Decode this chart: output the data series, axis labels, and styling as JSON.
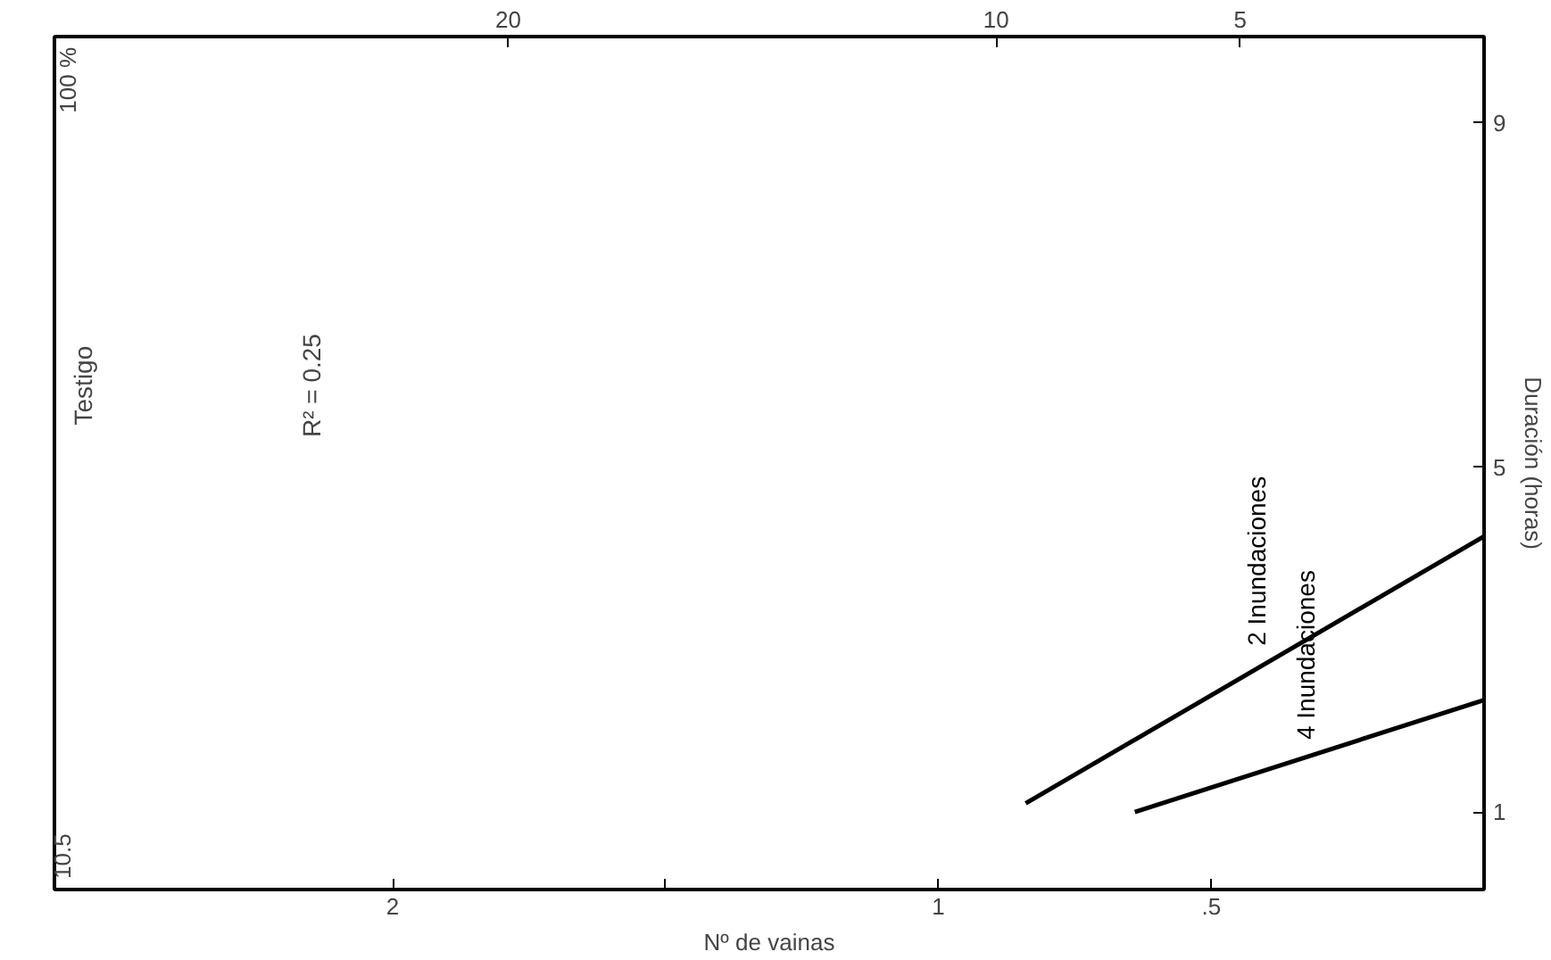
{
  "chart_data": {
    "type": "line",
    "xlabel": "Nº de vainas",
    "ylabel": "Duración (horas)",
    "xlim": [
      2.62,
      0
    ],
    "xticks": [
      2,
      {
        "value": 1.5,
        "label": null
      },
      1,
      {
        "value": 0.5,
        "label": ".5"
      }
    ],
    "x2lim": [
      29.3,
      0
    ],
    "x2ticks": [
      20,
      10,
      5
    ],
    "ylim": [
      0.1,
      10
    ],
    "yticks": [
      1,
      5,
      9
    ],
    "series": [
      {
        "name": "2 Inundaciones",
        "color": "#000000",
        "x": [
          0.84,
          0
        ],
        "values": [
          1.1,
          4.2
        ]
      },
      {
        "name": "4 Inundaciones",
        "color": "#000000",
        "x": [
          0.64,
          0
        ],
        "values": [
          1.0,
          2.3
        ]
      }
    ],
    "annotations": [
      "Testigo",
      "R² = 0.25",
      "10.5",
      "100 %"
    ],
    "grid": false,
    "marker": "none",
    "line_style": "solid"
  }
}
